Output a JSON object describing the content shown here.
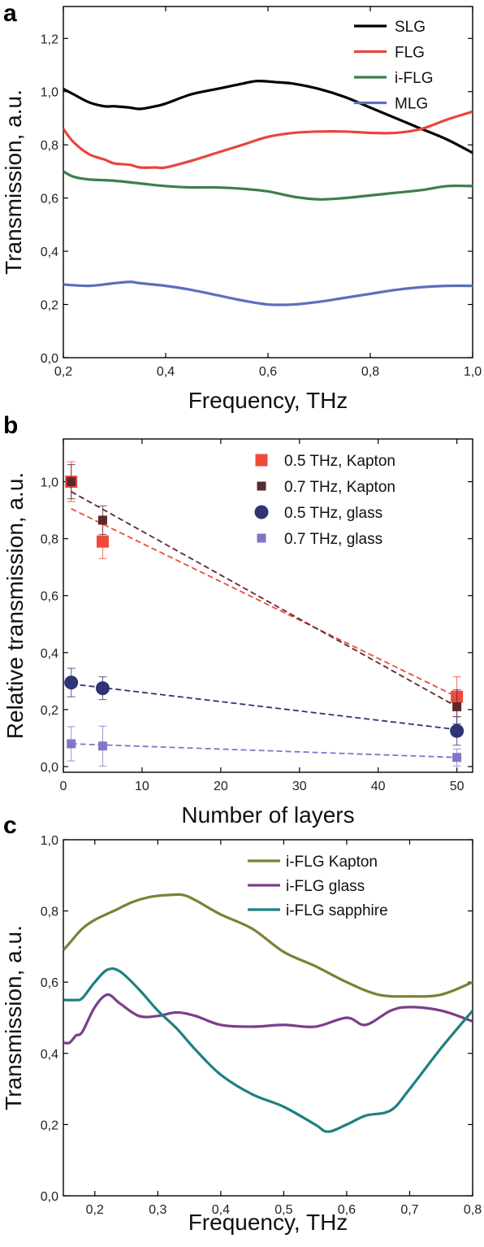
{
  "chart_data": [
    {
      "panel": "a",
      "type": "line",
      "xlabel": "Frequency, THz",
      "ylabel": "Transmission, a.u.",
      "xlim": [
        0.2,
        1.0
      ],
      "ylim": [
        0.0,
        1.32
      ],
      "xticks": [
        0.2,
        0.4,
        0.6,
        0.8,
        1.0
      ],
      "xtick_labels": [
        "0,2",
        "0,4",
        "0,6",
        "0,8",
        "1,0"
      ],
      "yticks": [
        0.0,
        0.2,
        0.4,
        0.6,
        0.8,
        1.0,
        1.2
      ],
      "ytick_labels": [
        "0,0",
        "0,2",
        "0,4",
        "0,6",
        "0,8",
        "1,0",
        "1,2"
      ],
      "legend_position": "top-right",
      "series": [
        {
          "name": "SLG",
          "color": "#000000",
          "x": [
            0.2,
            0.22,
            0.25,
            0.28,
            0.3,
            0.33,
            0.35,
            0.38,
            0.4,
            0.45,
            0.5,
            0.55,
            0.58,
            0.62,
            0.65,
            0.7,
            0.75,
            0.8,
            0.85,
            0.9,
            0.95,
            1.0
          ],
          "y": [
            1.01,
            0.99,
            0.96,
            0.945,
            0.945,
            0.94,
            0.935,
            0.945,
            0.955,
            0.99,
            1.01,
            1.03,
            1.04,
            1.035,
            1.03,
            1.01,
            0.98,
            0.94,
            0.9,
            0.86,
            0.82,
            0.77
          ]
        },
        {
          "name": "FLG",
          "color": "#e8453c",
          "x": [
            0.2,
            0.22,
            0.25,
            0.28,
            0.3,
            0.33,
            0.35,
            0.38,
            0.4,
            0.45,
            0.5,
            0.55,
            0.6,
            0.65,
            0.7,
            0.75,
            0.8,
            0.85,
            0.9,
            0.95,
            1.0
          ],
          "y": [
            0.86,
            0.81,
            0.765,
            0.745,
            0.73,
            0.725,
            0.715,
            0.715,
            0.715,
            0.74,
            0.77,
            0.8,
            0.83,
            0.845,
            0.85,
            0.85,
            0.845,
            0.845,
            0.86,
            0.895,
            0.925
          ]
        },
        {
          "name": "i-FLG",
          "color": "#3c7f4c",
          "x": [
            0.2,
            0.22,
            0.25,
            0.3,
            0.35,
            0.4,
            0.45,
            0.5,
            0.55,
            0.6,
            0.65,
            0.7,
            0.75,
            0.8,
            0.85,
            0.9,
            0.95,
            1.0
          ],
          "y": [
            0.7,
            0.68,
            0.67,
            0.665,
            0.655,
            0.645,
            0.64,
            0.64,
            0.635,
            0.625,
            0.605,
            0.595,
            0.6,
            0.61,
            0.62,
            0.63,
            0.645,
            0.645
          ]
        },
        {
          "name": "MLG",
          "color": "#5b6fbf",
          "x": [
            0.2,
            0.25,
            0.3,
            0.33,
            0.35,
            0.4,
            0.45,
            0.5,
            0.55,
            0.6,
            0.65,
            0.7,
            0.75,
            0.8,
            0.85,
            0.9,
            0.95,
            1.0
          ],
          "y": [
            0.275,
            0.27,
            0.28,
            0.285,
            0.28,
            0.27,
            0.255,
            0.235,
            0.215,
            0.2,
            0.2,
            0.21,
            0.225,
            0.24,
            0.255,
            0.265,
            0.27,
            0.27
          ]
        }
      ]
    },
    {
      "panel": "b",
      "type": "scatter",
      "xlabel": "Number of layers",
      "ylabel": "Relative transmission, a.u.",
      "xlim": [
        0,
        52
      ],
      "ylim": [
        -0.02,
        1.15
      ],
      "xticks": [
        0,
        10,
        20,
        30,
        40,
        50
      ],
      "xtick_labels": [
        "0",
        "10",
        "20",
        "30",
        "40",
        "50"
      ],
      "yticks": [
        0.0,
        0.2,
        0.4,
        0.6,
        0.8,
        1.0
      ],
      "ytick_labels": [
        "0,0",
        "0,2",
        "0,4",
        "0,6",
        "0,8",
        "1,0"
      ],
      "legend_position": "top-right",
      "series": [
        {
          "name": "0.5 THz, Kapton",
          "color": "#ef4a3c",
          "marker": "square",
          "x": [
            1,
            5,
            50
          ],
          "y": [
            1.0,
            0.79,
            0.245
          ],
          "err": [
            0.07,
            0.06,
            0.07
          ],
          "fit": [
            [
              1,
              0.905
            ],
            [
              50,
              0.245
            ]
          ]
        },
        {
          "name": "0.7 THz, Kapton",
          "color": "#5c2a2a",
          "marker": "square-small",
          "x": [
            1,
            5,
            50
          ],
          "y": [
            1.0,
            0.865,
            0.21
          ],
          "err": [
            0.06,
            0.05,
            0.06
          ],
          "fit": [
            [
              1,
              0.965
            ],
            [
              50,
              0.21
            ]
          ]
        },
        {
          "name": "0.5 THz, glass",
          "color": "#2e3575",
          "marker": "circle",
          "x": [
            1,
            5,
            50
          ],
          "y": [
            0.295,
            0.275,
            0.125
          ],
          "err": [
            0.05,
            0.04,
            0.05
          ],
          "fit": [
            [
              1,
              0.29
            ],
            [
              50,
              0.13
            ]
          ]
        },
        {
          "name": "0.7 THz, glass",
          "color": "#8474c9",
          "marker": "square-small",
          "x": [
            1,
            5,
            50
          ],
          "y": [
            0.08,
            0.072,
            0.032
          ],
          "err": [
            0.06,
            0.07,
            0.03
          ],
          "fit": [
            [
              1,
              0.08
            ],
            [
              50,
              0.032
            ]
          ]
        }
      ]
    },
    {
      "panel": "c",
      "type": "line",
      "xlabel": "Frequency, THz",
      "ylabel": "Transmission, a.u.",
      "xlim": [
        0.15,
        0.8
      ],
      "ylim": [
        0.0,
        1.0
      ],
      "xticks": [
        0.2,
        0.3,
        0.4,
        0.5,
        0.6,
        0.7,
        0.8
      ],
      "xtick_labels": [
        "0,2",
        "0,3",
        "0,4",
        "0,5",
        "0,6",
        "0,7",
        "0,8"
      ],
      "yticks": [
        0.0,
        0.2,
        0.4,
        0.6,
        0.8,
        1.0
      ],
      "ytick_labels": [
        "0,0",
        "0,2",
        "0,4",
        "0,6",
        "0,8",
        "1,0"
      ],
      "legend_position": "top-right",
      "series": [
        {
          "name": "i-FLG Kapton",
          "color": "#7f7f35",
          "x": [
            0.15,
            0.16,
            0.18,
            0.2,
            0.23,
            0.26,
            0.29,
            0.32,
            0.34,
            0.36,
            0.4,
            0.45,
            0.5,
            0.55,
            0.6,
            0.65,
            0.7,
            0.75,
            0.8
          ],
          "y": [
            0.69,
            0.71,
            0.75,
            0.775,
            0.8,
            0.825,
            0.84,
            0.845,
            0.845,
            0.83,
            0.79,
            0.75,
            0.685,
            0.645,
            0.6,
            0.565,
            0.56,
            0.565,
            0.6
          ]
        },
        {
          "name": "i-FLG glass",
          "color": "#7a3e8c",
          "x": [
            0.15,
            0.16,
            0.17,
            0.18,
            0.2,
            0.22,
            0.24,
            0.27,
            0.3,
            0.33,
            0.36,
            0.4,
            0.45,
            0.5,
            0.55,
            0.6,
            0.63,
            0.67,
            0.7,
            0.75,
            0.8
          ],
          "y": [
            0.43,
            0.43,
            0.45,
            0.46,
            0.53,
            0.565,
            0.54,
            0.505,
            0.505,
            0.515,
            0.505,
            0.48,
            0.475,
            0.48,
            0.475,
            0.5,
            0.48,
            0.52,
            0.53,
            0.52,
            0.49
          ]
        },
        {
          "name": "i-FLG sapphire",
          "color": "#1f8080",
          "x": [
            0.15,
            0.17,
            0.18,
            0.2,
            0.22,
            0.24,
            0.27,
            0.3,
            0.33,
            0.36,
            0.4,
            0.45,
            0.5,
            0.55,
            0.57,
            0.6,
            0.63,
            0.67,
            0.7,
            0.75,
            0.8
          ],
          "y": [
            0.55,
            0.55,
            0.555,
            0.6,
            0.635,
            0.63,
            0.58,
            0.52,
            0.47,
            0.41,
            0.34,
            0.285,
            0.25,
            0.2,
            0.18,
            0.2,
            0.225,
            0.24,
            0.3,
            0.415,
            0.52
          ]
        }
      ]
    }
  ]
}
